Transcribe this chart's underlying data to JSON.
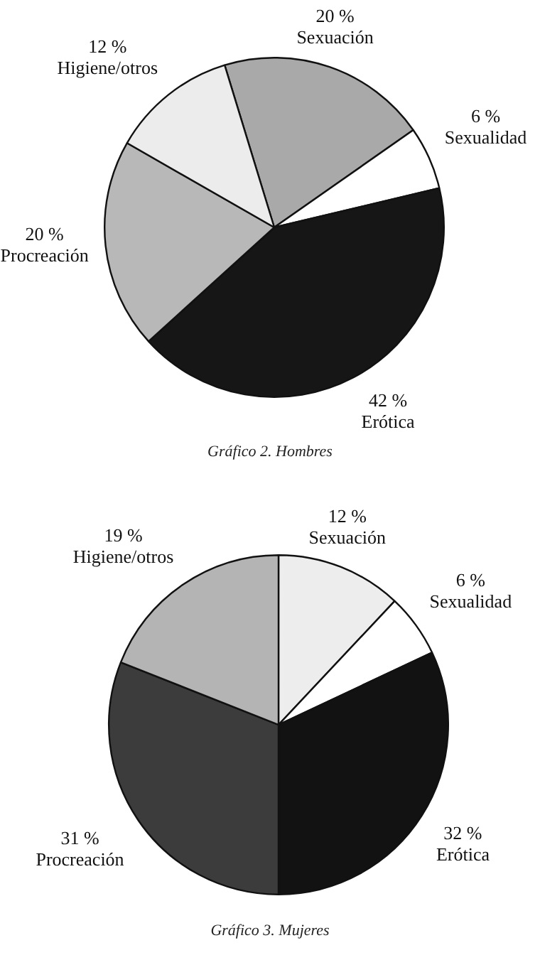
{
  "chart_data": [
    {
      "type": "pie",
      "title": "Gráfico 2. Hombres",
      "categories": [
        "Sexuación",
        "Sexualidad",
        "Erótica",
        "Procreación",
        "Higiene/otros"
      ],
      "values": [
        20,
        6,
        42,
        20,
        12
      ],
      "value_labels": [
        "20 %",
        "6 %",
        "42 %",
        "20 %",
        "12 %"
      ],
      "colors": [
        "#a9a9a9",
        "#ffffff",
        "#161616",
        "#b8b8b8",
        "#ececec"
      ],
      "legend": false
    },
    {
      "type": "pie",
      "title": "Gráfico 3. Mujeres",
      "categories": [
        "Sexuación",
        "Sexualidad",
        "Erótica",
        "Procreación",
        "Higiene/otros"
      ],
      "values": [
        12,
        6,
        32,
        31,
        19
      ],
      "value_labels": [
        "12 %",
        "6 %",
        "32 %",
        "31 %",
        "19 %"
      ],
      "colors": [
        "#ededed",
        "#ffffff",
        "#121212",
        "#3c3c3c",
        "#b4b4b4"
      ],
      "legend": false
    }
  ]
}
